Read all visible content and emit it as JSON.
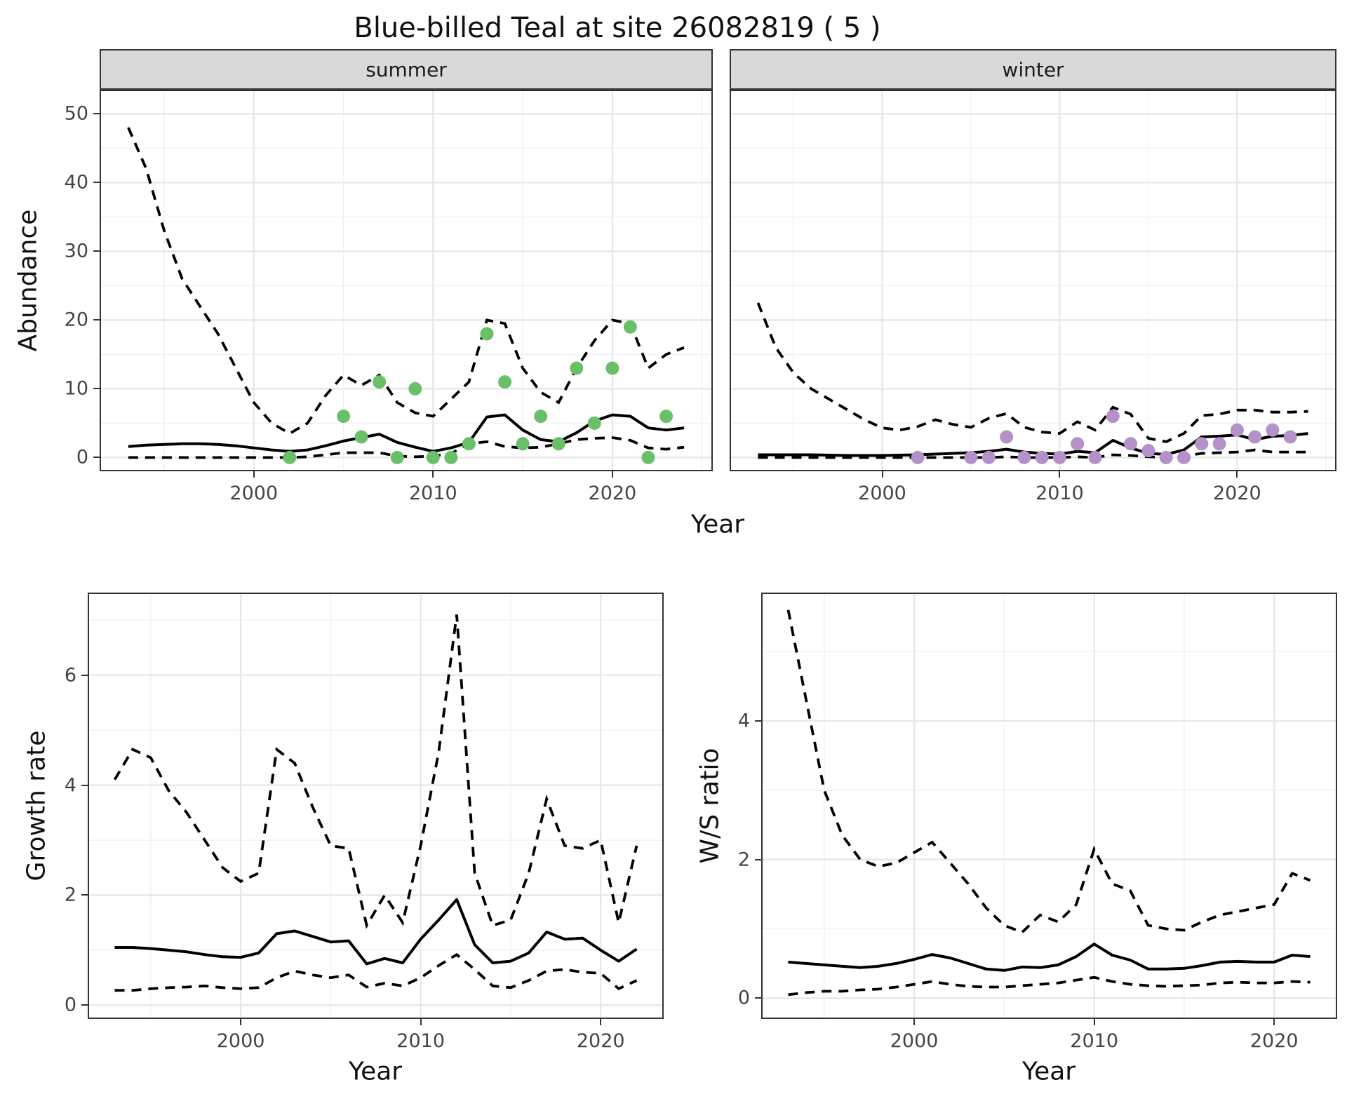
{
  "title": "Blue-billed Teal at site 26082819 ( 5 )",
  "axes": {
    "abundance_label": "Abundance",
    "year_label": "Year",
    "growth_label": "Growth rate",
    "ws_label": "W/S ratio"
  },
  "colors": {
    "summer_point": "#6abf69",
    "winter_point": "#b591c9",
    "line": "#000000",
    "strip_bg": "#d9d9d9",
    "panel_border": "#333333",
    "grid_major": "#e6e6e6",
    "grid_minor": "#f1f1f1",
    "tick_text": "#444444"
  },
  "chart_data": [
    {
      "id": "abundance-summer",
      "type": "line+scatter",
      "facet_label": "summer",
      "xlabel": "Year",
      "ylabel": "Abundance",
      "xlim": [
        1991.4,
        2025.6
      ],
      "ylim": [
        -2,
        53.5
      ],
      "xticks": [
        2000,
        2010,
        2020
      ],
      "xminor": [
        1995,
        2005,
        2015,
        2025
      ],
      "yticks": [
        0,
        10,
        20,
        30,
        40,
        50
      ],
      "yminor": [
        5,
        15,
        25,
        35,
        45
      ],
      "line_start_year": 1993,
      "median": [
        1.6,
        1.8,
        1.9,
        2.0,
        2.0,
        1.9,
        1.7,
        1.4,
        1.1,
        0.9,
        1.1,
        1.7,
        2.4,
        2.9,
        3.4,
        2.2,
        1.5,
        0.9,
        1.4,
        2.2,
        5.9,
        6.2,
        4.0,
        2.6,
        2.3,
        3.6,
        5.3,
        6.2,
        6.0,
        4.3,
        4.0,
        4.3
      ],
      "upper": [
        48,
        42,
        33,
        26,
        22,
        18,
        13,
        8,
        5,
        3.5,
        5,
        9,
        12,
        10.5,
        12,
        8,
        6.5,
        6,
        8.5,
        11,
        20,
        19.5,
        13,
        9.5,
        8,
        13,
        17,
        20,
        19.5,
        13,
        15,
        16
      ],
      "lower": [
        0,
        0,
        0,
        0,
        0,
        0,
        0,
        0,
        0,
        0,
        0.1,
        0.4,
        0.7,
        0.7,
        0.7,
        0.2,
        0.1,
        0.2,
        0.6,
        2.0,
        2.3,
        1.6,
        1.4,
        1.5,
        2.0,
        2.6,
        2.8,
        2.9,
        2.5,
        1.4,
        1.2,
        1.5
      ],
      "point_years": [
        2002,
        2005,
        2006,
        2007,
        2008,
        2009,
        2010,
        2011,
        2012,
        2013,
        2014,
        2015,
        2016,
        2017,
        2018,
        2019,
        2020,
        2021,
        2022,
        2023
      ],
      "point_values": [
        0,
        6,
        3,
        11,
        0,
        10,
        0,
        0,
        2,
        18,
        11,
        2,
        6,
        2,
        13,
        5,
        13,
        19,
        0,
        6
      ],
      "point_color": "#6abf69"
    },
    {
      "id": "abundance-winter",
      "type": "line+scatter",
      "facet_label": "winter",
      "xlabel": "Year",
      "ylabel": "Abundance",
      "xlim": [
        1991.4,
        2025.6
      ],
      "ylim": [
        -2,
        53.5
      ],
      "xticks": [
        2000,
        2010,
        2020
      ],
      "xminor": [
        1995,
        2005,
        2015,
        2025
      ],
      "yticks": [
        0,
        10,
        20,
        30,
        40,
        50
      ],
      "yminor": [
        5,
        15,
        25,
        35,
        45
      ],
      "line_start_year": 1993,
      "median": [
        0.4,
        0.4,
        0.4,
        0.4,
        0.35,
        0.3,
        0.3,
        0.3,
        0.35,
        0.4,
        0.5,
        0.6,
        0.7,
        0.9,
        1.2,
        0.8,
        0.6,
        0.5,
        0.9,
        0.7,
        2.5,
        1.4,
        0.6,
        0.45,
        1.1,
        3.0,
        3.1,
        3.3,
        2.6,
        3.1,
        3.2,
        3.5
      ],
      "upper": [
        22.5,
        16,
        12.3,
        10,
        8.5,
        7,
        5.5,
        4.3,
        4.0,
        4.5,
        5.5,
        4.8,
        4.4,
        5.7,
        6.4,
        4.4,
        3.7,
        3.5,
        5.2,
        4.0,
        7.3,
        6.3,
        2.8,
        2.3,
        3.5,
        6.1,
        6.3,
        6.9,
        6.9,
        6.6,
        6.6,
        6.7
      ],
      "lower": [
        0,
        0,
        0,
        0,
        0,
        0,
        0,
        0,
        0,
        0,
        0,
        0,
        0,
        0,
        0.1,
        0,
        0,
        0,
        0.1,
        0,
        0.4,
        0.3,
        0.1,
        0,
        0.2,
        0.6,
        0.7,
        0.8,
        1.1,
        0.8,
        0.8,
        0.8
      ],
      "point_years": [
        2002,
        2005,
        2006,
        2007,
        2008,
        2009,
        2010,
        2011,
        2012,
        2013,
        2014,
        2015,
        2016,
        2017,
        2018,
        2019,
        2020,
        2021,
        2022,
        2023
      ],
      "point_values": [
        0,
        0,
        0,
        3,
        0,
        0,
        0,
        2,
        0,
        6,
        2,
        1,
        0,
        0,
        2,
        2,
        4,
        3,
        4,
        3
      ],
      "point_color": "#b591c9"
    },
    {
      "id": "growth-rate",
      "type": "line",
      "xlabel": "Year",
      "ylabel": "Growth rate",
      "xlim": [
        1991.5,
        2023.5
      ],
      "ylim": [
        -0.25,
        7.5
      ],
      "xticks": [
        2000,
        2010,
        2020
      ],
      "xminor": [
        1995,
        2005,
        2015
      ],
      "yticks": [
        0,
        2,
        4,
        6
      ],
      "yminor": [
        1,
        3,
        5,
        7
      ],
      "line_start_year": 1993,
      "median": [
        1.05,
        1.05,
        1.03,
        1.0,
        0.97,
        0.92,
        0.88,
        0.87,
        0.95,
        1.3,
        1.35,
        1.25,
        1.15,
        1.17,
        0.75,
        0.85,
        0.77,
        1.2,
        1.55,
        1.92,
        1.1,
        0.77,
        0.8,
        0.95,
        1.33,
        1.2,
        1.22,
        1.0,
        0.8,
        1.02
      ],
      "upper": [
        4.1,
        4.65,
        4.5,
        3.9,
        3.5,
        3.0,
        2.5,
        2.25,
        2.4,
        4.65,
        4.4,
        3.6,
        2.9,
        2.85,
        1.45,
        2.0,
        1.5,
        2.9,
        4.6,
        7.1,
        2.4,
        1.45,
        1.55,
        2.4,
        3.75,
        2.9,
        2.85,
        3.0,
        1.5,
        2.9
      ],
      "lower": [
        0.27,
        0.27,
        0.3,
        0.32,
        0.33,
        0.35,
        0.32,
        0.3,
        0.32,
        0.5,
        0.62,
        0.55,
        0.5,
        0.55,
        0.33,
        0.4,
        0.35,
        0.5,
        0.72,
        0.92,
        0.65,
        0.35,
        0.32,
        0.45,
        0.62,
        0.65,
        0.6,
        0.58,
        0.3,
        0.45
      ]
    },
    {
      "id": "ws-ratio",
      "type": "line",
      "xlabel": "Year",
      "ylabel": "W/S ratio",
      "xlim": [
        1991.5,
        2023.5
      ],
      "ylim": [
        -0.3,
        5.85
      ],
      "xticks": [
        2000,
        2010,
        2020
      ],
      "xminor": [
        1995,
        2005,
        2015
      ],
      "yticks": [
        0,
        2,
        4
      ],
      "yminor": [
        1,
        3,
        5
      ],
      "line_start_year": 1993,
      "median": [
        0.52,
        0.5,
        0.48,
        0.46,
        0.44,
        0.46,
        0.5,
        0.56,
        0.63,
        0.58,
        0.5,
        0.42,
        0.4,
        0.45,
        0.44,
        0.48,
        0.6,
        0.78,
        0.62,
        0.55,
        0.42,
        0.42,
        0.43,
        0.47,
        0.52,
        0.53,
        0.52,
        0.52,
        0.62,
        0.6
      ],
      "upper": [
        5.6,
        4.3,
        3.0,
        2.35,
        2.0,
        1.9,
        1.95,
        2.1,
        2.25,
        1.95,
        1.65,
        1.3,
        1.05,
        0.95,
        1.2,
        1.1,
        1.35,
        2.15,
        1.65,
        1.55,
        1.05,
        1.0,
        0.98,
        1.1,
        1.2,
        1.25,
        1.3,
        1.35,
        1.8,
        1.7
      ],
      "lower": [
        0.05,
        0.08,
        0.1,
        0.1,
        0.12,
        0.13,
        0.16,
        0.2,
        0.24,
        0.2,
        0.17,
        0.16,
        0.16,
        0.18,
        0.2,
        0.22,
        0.26,
        0.3,
        0.24,
        0.2,
        0.18,
        0.17,
        0.18,
        0.19,
        0.22,
        0.23,
        0.22,
        0.22,
        0.24,
        0.23
      ]
    }
  ]
}
